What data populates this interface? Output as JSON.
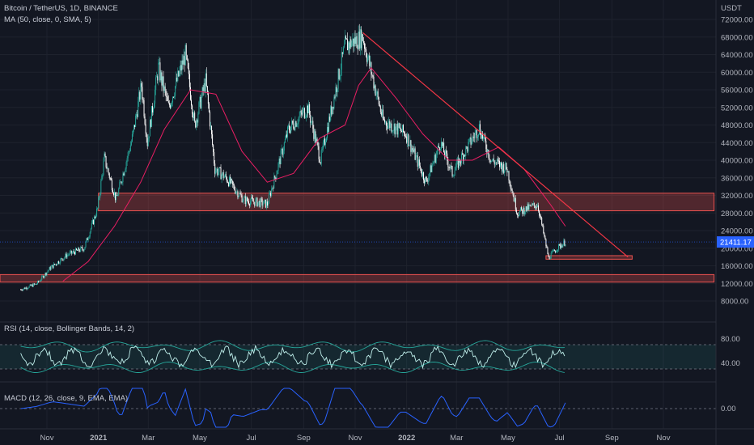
{
  "symbol_title": "Bitcoin / TetherUS, 1D, BINANCE",
  "ma_label": "MA (50, close, 0, SMA, 5)",
  "rsi_label": "RSI (14, close, Bollinger Bands, 14, 2)",
  "macd_label": "MACD (12, 26, close, 9, EMA, EMA)",
  "currency": "USDT",
  "last_price": "21411.17",
  "colors": {
    "background": "#131722",
    "up": "#26a69a",
    "down": "#ffffff",
    "ma": "#e91e63",
    "zone": "#ef5350",
    "rsi_band": "#26a69a",
    "macd": "#2962ff",
    "price_tag": "#2962ff"
  },
  "chart_data": {
    "type": "line",
    "price_axis_ticks": [
      "72000.00",
      "68000.00",
      "64000.00",
      "60000.00",
      "56000.00",
      "52000.00",
      "48000.00",
      "44000.00",
      "40000.00",
      "36000.00",
      "32000.00",
      "28000.00",
      "24000.00",
      "20000.00",
      "16000.00",
      "12000.00",
      "8000.00"
    ],
    "price_ylim": [
      5000,
      75000
    ],
    "time_axis_labels": [
      "Nov",
      "2021",
      "Mar",
      "May",
      "Jul",
      "Sep",
      "Nov",
      "2022",
      "Mar",
      "May",
      "Jul",
      "Sep",
      "Nov"
    ],
    "rsi_ticks": [
      "80.00",
      "40.00"
    ],
    "macd_ticks": [
      "0.00"
    ],
    "price_series": [
      {
        "d": "2020-10-01",
        "v": 10600
      },
      {
        "d": "2020-10-20",
        "v": 11900
      },
      {
        "d": "2020-11-05",
        "v": 15500
      },
      {
        "d": "2020-11-25",
        "v": 18500
      },
      {
        "d": "2020-12-15",
        "v": 20000
      },
      {
        "d": "2020-12-31",
        "v": 29000
      },
      {
        "d": "2021-01-08",
        "v": 40500
      },
      {
        "d": "2021-01-22",
        "v": 31000
      },
      {
        "d": "2021-02-10",
        "v": 45000
      },
      {
        "d": "2021-02-21",
        "v": 57000
      },
      {
        "d": "2021-02-28",
        "v": 44000
      },
      {
        "d": "2021-03-13",
        "v": 61000
      },
      {
        "d": "2021-03-25",
        "v": 52000
      },
      {
        "d": "2021-04-14",
        "v": 64000
      },
      {
        "d": "2021-04-25",
        "v": 48000
      },
      {
        "d": "2021-05-08",
        "v": 58000
      },
      {
        "d": "2021-05-19",
        "v": 38000
      },
      {
        "d": "2021-06-01",
        "v": 36000
      },
      {
        "d": "2021-06-22",
        "v": 31000
      },
      {
        "d": "2021-07-20",
        "v": 30000
      },
      {
        "d": "2021-08-14",
        "v": 47000
      },
      {
        "d": "2021-09-06",
        "v": 52000
      },
      {
        "d": "2021-09-21",
        "v": 40000
      },
      {
        "d": "2021-10-20",
        "v": 66000
      },
      {
        "d": "2021-11-10",
        "v": 68000
      },
      {
        "d": "2021-12-04",
        "v": 49000
      },
      {
        "d": "2021-12-31",
        "v": 46000
      },
      {
        "d": "2022-01-24",
        "v": 35000
      },
      {
        "d": "2022-02-10",
        "v": 44000
      },
      {
        "d": "2022-02-24",
        "v": 37000
      },
      {
        "d": "2022-03-28",
        "v": 47500
      },
      {
        "d": "2022-04-11",
        "v": 40000
      },
      {
        "d": "2022-04-30",
        "v": 38000
      },
      {
        "d": "2022-05-12",
        "v": 28000
      },
      {
        "d": "2022-06-05",
        "v": 30000
      },
      {
        "d": "2022-06-18",
        "v": 17800
      },
      {
        "d": "2022-06-28",
        "v": 20000
      },
      {
        "d": "2022-07-08",
        "v": 21411
      }
    ],
    "ma_series": [
      {
        "d": "2020-11-20",
        "v": 12500
      },
      {
        "d": "2020-12-20",
        "v": 17000
      },
      {
        "d": "2021-01-20",
        "v": 25000
      },
      {
        "d": "2021-02-20",
        "v": 35000
      },
      {
        "d": "2021-03-20",
        "v": 47000
      },
      {
        "d": "2021-04-20",
        "v": 56000
      },
      {
        "d": "2021-05-20",
        "v": 55000
      },
      {
        "d": "2021-06-20",
        "v": 42000
      },
      {
        "d": "2021-07-20",
        "v": 35000
      },
      {
        "d": "2021-08-20",
        "v": 37000
      },
      {
        "d": "2021-09-20",
        "v": 45000
      },
      {
        "d": "2021-10-20",
        "v": 48000
      },
      {
        "d": "2021-11-05",
        "v": 57000
      },
      {
        "d": "2021-11-20",
        "v": 61000
      },
      {
        "d": "2021-12-20",
        "v": 54000
      },
      {
        "d": "2022-01-20",
        "v": 46000
      },
      {
        "d": "2022-02-20",
        "v": 40000
      },
      {
        "d": "2022-03-20",
        "v": 40000
      },
      {
        "d": "2022-04-20",
        "v": 43000
      },
      {
        "d": "2022-05-20",
        "v": 38000
      },
      {
        "d": "2022-06-20",
        "v": 30000
      },
      {
        "d": "2022-07-08",
        "v": 25000
      }
    ],
    "trendline": [
      {
        "d": "2021-11-10",
        "v": 69000
      },
      {
        "d": "2022-09-20",
        "v": 18000
      }
    ],
    "zones": [
      {
        "from": 28500,
        "to": 32500,
        "d_start": "2021-01-01",
        "d_end": "2022-12-31"
      },
      {
        "from": 12300,
        "to": 14000,
        "d_start": "2020-09-01",
        "d_end": "2022-12-31"
      },
      {
        "from": 17500,
        "to": 18300,
        "d_start": "2022-06-15",
        "d_end": "2022-09-25"
      }
    ]
  }
}
